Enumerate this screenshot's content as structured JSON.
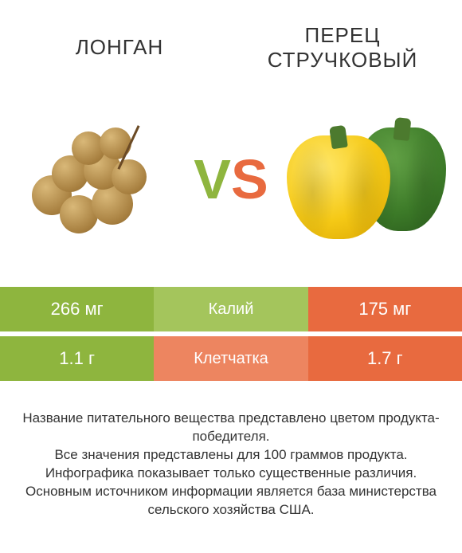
{
  "header": {
    "left_title": "ЛОНГАН",
    "right_title": "ПЕРЕЦ СТРУЧКОВЫЙ"
  },
  "vs": {
    "v_text": "V",
    "s_text": "S",
    "v_color": "#8eb53e",
    "s_color": "#e86a3f"
  },
  "colors": {
    "green": "#8eb53e",
    "green_mid": "#a4c55c",
    "orange": "#e86a3f",
    "orange_mid": "#ed8560",
    "white": "#ffffff"
  },
  "table": {
    "rows": [
      {
        "label": "Калий",
        "left_value": "266 мг",
        "right_value": "175 мг",
        "winner": "left"
      },
      {
        "label": "Клетчатка",
        "left_value": "1.1 г",
        "right_value": "1.7 г",
        "winner": "right"
      }
    ]
  },
  "footer": {
    "line1": "Название питательного вещества представлено цветом продукта-победителя.",
    "line2": "Все значения представлены для 100 граммов продукта.",
    "line3": "Инфографика показывает только существенные различия.",
    "line4": "Основным источником информации является база министерства сельского хозяйства США."
  },
  "images": {
    "left_name": "longan-cluster",
    "right_name": "bell-peppers"
  }
}
